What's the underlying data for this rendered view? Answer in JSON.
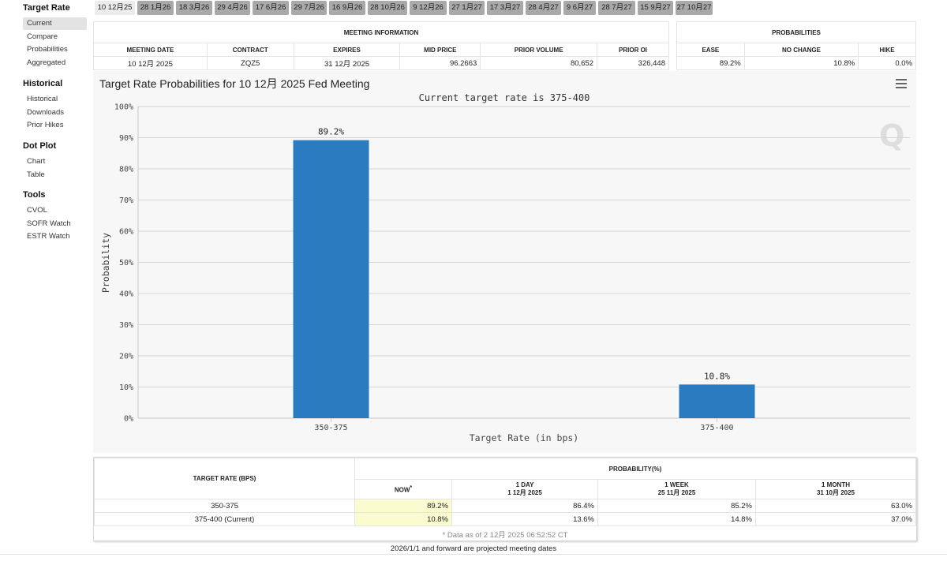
{
  "sidebar": {
    "sections": [
      {
        "title": "Target Rate",
        "items": [
          {
            "label": "Current",
            "active": true
          },
          {
            "label": "Compare"
          },
          {
            "label": "Probabilities"
          },
          {
            "label": "Aggregated"
          }
        ]
      },
      {
        "title": "Historical",
        "items": [
          {
            "label": "Historical"
          },
          {
            "label": "Downloads"
          },
          {
            "label": "Prior Hikes"
          }
        ]
      },
      {
        "title": "Dot Plot",
        "items": [
          {
            "label": "Chart"
          },
          {
            "label": "Table"
          }
        ]
      },
      {
        "title": "Tools",
        "items": [
          {
            "label": "CVOL"
          },
          {
            "label": "SOFR Watch"
          },
          {
            "label": "ESTR Watch"
          }
        ]
      }
    ]
  },
  "meeting_tabs": [
    {
      "label": "10 12月25",
      "active": true
    },
    {
      "label": "28 1月26"
    },
    {
      "label": "18 3月26"
    },
    {
      "label": "29 4月26"
    },
    {
      "label": "17 6月26"
    },
    {
      "label": "29 7月26"
    },
    {
      "label": "16 9月26"
    },
    {
      "label": "28 10月26"
    },
    {
      "label": "9 12月26"
    },
    {
      "label": "27 1月27"
    },
    {
      "label": "17 3月27"
    },
    {
      "label": "28 4月27"
    },
    {
      "label": "9 6月27"
    },
    {
      "label": "28 7月27"
    },
    {
      "label": "15 9月27"
    },
    {
      "label": "27 10月27"
    }
  ],
  "meeting_info": {
    "title": "MEETING INFORMATION",
    "headers": [
      "MEETING DATE",
      "CONTRACT",
      "EXPIRES",
      "MID PRICE",
      "PRIOR VOLUME",
      "PRIOR OI"
    ],
    "values": [
      "10 12月 2025",
      "ZQZ5",
      "31 12月 2025",
      "96.2663",
      "80,652",
      "326,448"
    ]
  },
  "probabilities": {
    "title": "PROBABILITIES",
    "headers": [
      "EASE",
      "NO CHANGE",
      "HIKE"
    ],
    "values": [
      "89.2%",
      "10.8%",
      "0.0%"
    ]
  },
  "chart": {
    "heading": "Target Rate Probabilities for 10 12月 2025 Fed Meeting"
  },
  "chart_data": {
    "type": "bar",
    "title": "Target Rate Probabilities for 10 12月 2025 Fed Meeting",
    "subtitle": "Current target rate is 375-400",
    "xlabel": "Target Rate (in bps)",
    "ylabel": "Probability",
    "categories": [
      "350-375",
      "375-400"
    ],
    "values": [
      89.2,
      10.8
    ],
    "value_labels": [
      "89.2%",
      "10.8%"
    ],
    "ylim": [
      0,
      100
    ],
    "yticks": [
      "0%",
      "10%",
      "20%",
      "30%",
      "40%",
      "50%",
      "60%",
      "70%",
      "80%",
      "90%",
      "100%"
    ],
    "grid": true,
    "bar_color": "#2a7bbf",
    "watermark": "Q"
  },
  "prob_table": {
    "rate_header": "TARGET RATE (BPS)",
    "prob_header": "PROBABILITY(%)",
    "columns": [
      {
        "line1": "NOW",
        "sup": "*",
        "line2": ""
      },
      {
        "line1": "1 DAY",
        "line2": "1 12月 2025"
      },
      {
        "line1": "1 WEEK",
        "line2": "25 11月 2025"
      },
      {
        "line1": "1 MONTH",
        "line2": "31 10月 2025"
      }
    ],
    "rows": [
      {
        "rate": "350-375",
        "values": [
          "89.2%",
          "86.4%",
          "85.2%",
          "63.0%"
        ]
      },
      {
        "rate": "375-400 (Current)",
        "values": [
          "10.8%",
          "13.6%",
          "14.8%",
          "37.0%"
        ]
      }
    ],
    "note": "* Data as of 2 12月 2025 06:52:52 CT"
  },
  "footer_note": "2026/1/1 and forward are projected meeting dates",
  "icons": {
    "menu": "hamburger-menu-icon"
  }
}
